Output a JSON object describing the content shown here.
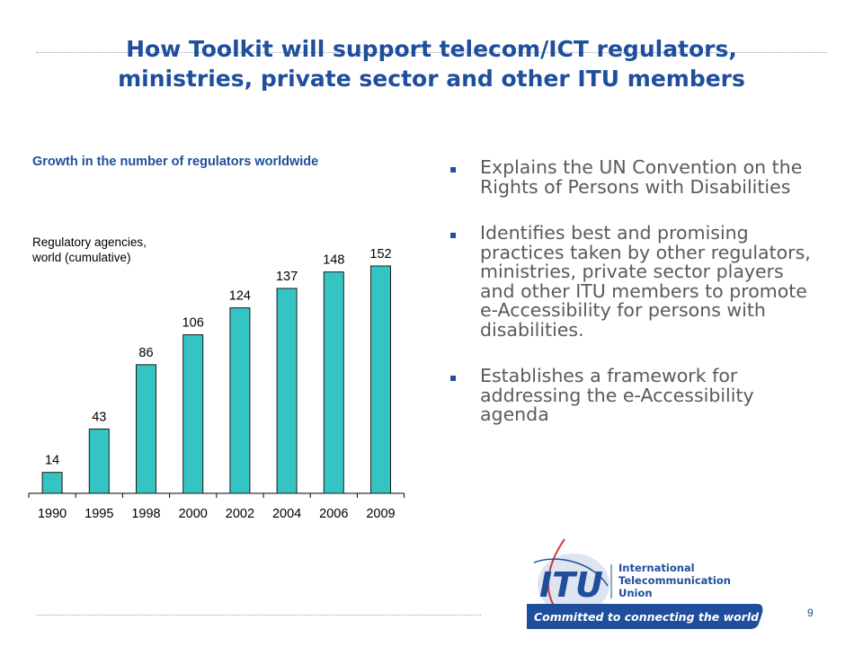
{
  "slide": {
    "title": "How Toolkit will support telecom/ICT regulators, ministries, private sector and other ITU members",
    "page_number": "9"
  },
  "chart_data": {
    "type": "bar",
    "title": "Growth in the number of regulators worldwide",
    "inner_label_line1": "Regulatory agencies,",
    "inner_label_line2": "world (cumulative)",
    "categories": [
      "1990",
      "1995",
      "1998",
      "2000",
      "2002",
      "2004",
      "2006",
      "2009"
    ],
    "values": [
      14,
      43,
      86,
      106,
      124,
      137,
      148,
      152
    ],
    "ylim": [
      0,
      160
    ],
    "grid": false,
    "bar_color": "#35c4c4",
    "bar_edge_color": "#1a1a1a"
  },
  "bullets": [
    "Explains the UN Convention on the Rights of Persons with Disabilities",
    "Identifies best and promising practices taken by other regulators, ministries, private sector players and other ITU members to promote e-Accessibility for persons with disabilities.",
    "Establishes a framework for addressing the e-Accessibility agenda"
  ],
  "bullet_marker": "▪",
  "logo": {
    "acronym": "ITU",
    "line1": "International",
    "line2": "Telecommunication",
    "line3": "Union",
    "tagline": "Committed to connecting the world",
    "color": "#1f4e9c"
  }
}
